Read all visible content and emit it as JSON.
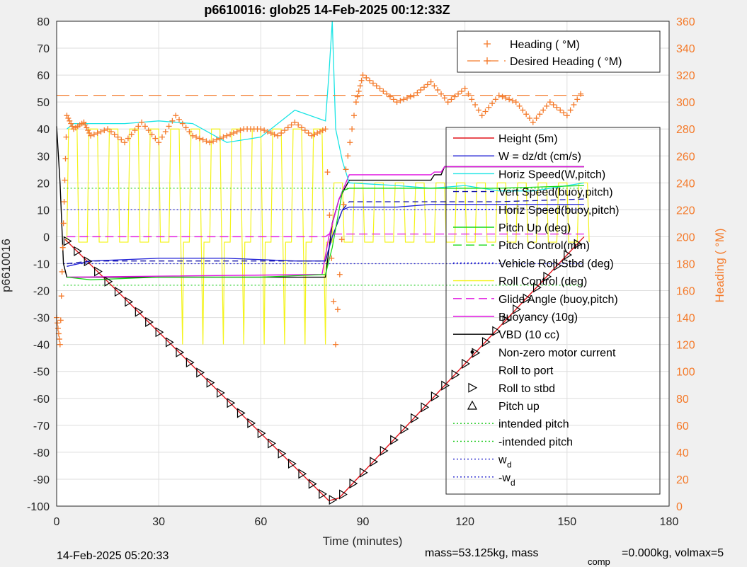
{
  "title": "p6610016: glob25 14-Feb-2025 00:12:33Z",
  "footer": {
    "timestamp": "14-Feb-2025 05:20:33",
    "mass_text": "mass=53.125kg, mass",
    "comp_sub": "comp",
    "comp_text": "=0.000kg, volmax=5"
  },
  "colors": {
    "heading": "#f47a2a",
    "height": "#e2141b",
    "w": "#1f1fd6",
    "horiz_w": "#18e4e4",
    "vert_buoy": "#1212a8",
    "horiz_buoy": "#1a1ae6",
    "pitch_up": "#16d916",
    "pitch_ctrl": "#16d916",
    "roll_stbd": "#2a2adf",
    "roll_ctrl": "#f4f41a",
    "glide": "#e014e0",
    "buoyancy": "#e014e0",
    "vbd": "#000000",
    "intended_pitch": "#22cc22",
    "wd": "#2222cc"
  },
  "chart_data": {
    "type": "line",
    "xlabel": "Time (minutes)",
    "ylabel": "p6610016",
    "y2label": "Heading (  °M)",
    "xlim": [
      0,
      180
    ],
    "ylim": [
      -100,
      80
    ],
    "y2lim": [
      0,
      360
    ],
    "x_ticks": [
      "0",
      "30",
      "60",
      "90",
      "120",
      "150",
      "180"
    ],
    "y_ticks": [
      "80",
      "70",
      "60",
      "50",
      "40",
      "30",
      "20",
      "10",
      "0",
      "-10",
      "-20",
      "-30",
      "-40",
      "-50",
      "-60",
      "-70",
      "-80",
      "-90",
      "-100"
    ],
    "y2_ticks": [
      "360",
      "340",
      "320",
      "300",
      "280",
      "260",
      "240",
      "220",
      "200",
      "180",
      "160",
      "140",
      "120",
      "100",
      "80",
      "60",
      "40",
      "20",
      "0"
    ],
    "grid": true,
    "legend_heading": [
      "Heading (  °M)",
      "Desired Heading (    °M)"
    ],
    "legend_main": [
      "Height (5m)",
      "W = dz/dt (cm/s)",
      "Horiz Speed(W,pitch)",
      "Vert Speed(buoy,pitch)",
      "Horiz Speed(buoy,pitch)",
      "Pitch Up (deg)",
      "Pitch Control(mm)",
      "Vehicle Roll Stbd (deg)",
      "Roll Control (deg)",
      "Glide Angle (buoy,pitch)",
      "Buoyancy (10g)",
      "VBD (10 cc)",
      "Non-zero motor current",
      "Roll to port",
      "Roll to stbd",
      "Pitch up",
      "intended pitch",
      "-intended pitch",
      "w",
      "-w"
    ],
    "legend_sub": "d",
    "series": [
      {
        "name": "Height (5m)",
        "x": [
          2.5,
          80,
          83,
          155
        ],
        "y": [
          -1,
          -98,
          -97,
          0
        ]
      },
      {
        "name": "VBD (10 cc)",
        "x": [
          0,
          1,
          2,
          3,
          78,
          79,
          80,
          81,
          83,
          86,
          110,
          111,
          113,
          114,
          155
        ],
        "y": [
          41,
          20,
          -10,
          -15,
          -15,
          -15,
          -5,
          5,
          14,
          21,
          21,
          23,
          23,
          26,
          26
        ]
      },
      {
        "name": "Buoyancy (10g)",
        "x": [
          3,
          78,
          80,
          83,
          86,
          110,
          111,
          113,
          114,
          155
        ],
        "y": [
          -15,
          -14,
          0,
          14,
          23,
          23,
          24,
          24,
          26,
          26
        ]
      },
      {
        "name": "Horiz Speed(W,pitch)",
        "x": [
          3,
          5,
          20,
          30,
          40,
          50,
          60,
          70,
          79,
          80,
          81,
          82,
          84,
          86,
          100,
          110,
          120,
          130,
          140,
          155
        ],
        "y": [
          40,
          42,
          42,
          43,
          42,
          35,
          37,
          47,
          43,
          60,
          80,
          40,
          28,
          20,
          19,
          18,
          19,
          17,
          17,
          20
        ]
      },
      {
        "name": "W = dz/dt (cm/s)",
        "x": [
          3,
          10,
          30,
          50,
          70,
          79,
          81,
          84,
          86,
          100,
          110,
          130,
          155
        ],
        "y": [
          -11,
          -9,
          -8,
          -8,
          -9,
          -9,
          0,
          10,
          11,
          11,
          12,
          12,
          12
        ]
      },
      {
        "name": "Vert Speed(buoy,pitch)",
        "x": [
          3,
          10,
          30,
          50,
          70,
          79,
          81,
          84,
          86,
          100,
          110,
          130,
          155
        ],
        "y": [
          -10,
          -9,
          -9,
          -9,
          -9,
          -9,
          0,
          10,
          13,
          13,
          13,
          13,
          14
        ]
      },
      {
        "name": "Pitch Up (deg)",
        "x": [
          3,
          10,
          30,
          60,
          79,
          81,
          84,
          86,
          100,
          130,
          155
        ],
        "y": [
          -15,
          -16,
          -15,
          -15,
          -14,
          -4,
          17,
          18,
          18,
          18,
          19
        ]
      },
      {
        "name": "Glide Angle (buoy,pitch)",
        "x": [
          3,
          79,
          80,
          81,
          155
        ],
        "y": [
          0,
          0,
          1,
          1,
          1
        ]
      },
      {
        "name": "Heading (  °M)",
        "x": [
          0,
          1,
          2,
          3,
          5,
          8,
          10,
          15,
          20,
          25,
          30,
          35,
          40,
          45,
          50,
          55,
          60,
          65,
          70,
          75,
          79,
          82,
          85,
          88,
          90,
          95,
          100,
          105,
          110,
          115,
          120,
          125,
          130,
          135,
          140,
          145,
          150,
          155
        ],
        "y": [
          140,
          120,
          210,
          290,
          280,
          285,
          275,
          280,
          270,
          285,
          270,
          290,
          275,
          270,
          275,
          280,
          280,
          275,
          285,
          275,
          280,
          120,
          250,
          300,
          320,
          310,
          300,
          305,
          315,
          300,
          310,
          290,
          305,
          300,
          285,
          300,
          290,
          310
        ]
      },
      {
        "name": "Desired Heading (    °M)",
        "x": [
          0,
          155
        ],
        "y": [
          305,
          305
        ]
      }
    ]
  }
}
